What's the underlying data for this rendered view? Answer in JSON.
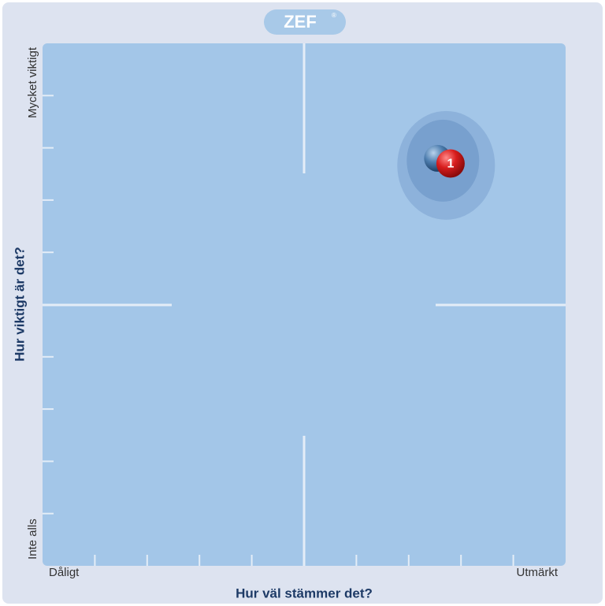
{
  "logo": "ZEF",
  "logo_mark": "®",
  "chart_data": {
    "type": "scatter",
    "y_label": "Hur viktigt är det?",
    "y_top_label": "Mycket viktigt",
    "y_bottom_label": "Inte alls",
    "x_label": "Hur väl stämmer det?",
    "x_left_label": "Dåligt",
    "x_right_label": "Utmärkt",
    "xlim": [
      0,
      10
    ],
    "ylim": [
      0,
      10
    ],
    "xticks": [
      1,
      2,
      3,
      4,
      5,
      6,
      7,
      8,
      9
    ],
    "yticks": [
      1,
      2,
      3,
      4,
      5,
      6,
      7,
      8,
      9
    ],
    "mean": {
      "x": 7.55,
      "y": 7.8,
      "color": "#4f7fb0"
    },
    "points": [
      {
        "label": "1",
        "x": 7.8,
        "y": 7.7,
        "color": "#d81d1d"
      }
    ]
  }
}
